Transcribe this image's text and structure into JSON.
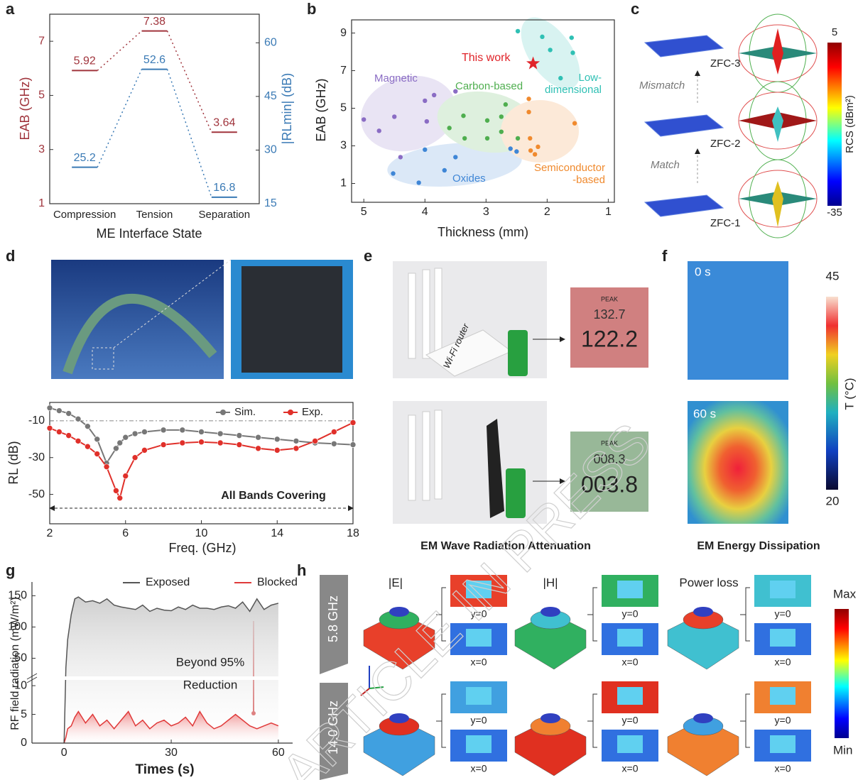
{
  "chart_data": [
    {
      "type": "line",
      "categories": [
        "Compression",
        "Tension",
        "Separation"
      ],
      "series": [
        {
          "color": "#a0343c",
          "values": [
            5.92,
            7.38,
            3.64
          ]
        },
        {
          "color": "#3a7ab5",
          "values": [
            25.2,
            52.6,
            16.8
          ],
          "axis": "y2"
        }
      ],
      "xlabel": "ME Interface State",
      "ylabel": "EAB (GHz)",
      "y2label": "|RLmin| (dB)",
      "ylim": [
        1,
        8
      ],
      "yticks": [
        1,
        3,
        5,
        7
      ],
      "y2lim": [
        15,
        68
      ],
      "y2ticks": [
        15,
        30,
        45,
        60
      ]
    },
    {
      "type": "scatter",
      "xlabel": "Thickness (mm)",
      "ylabel": "EAB (GHz)",
      "xlim": [
        5.2,
        0.9
      ],
      "xticks": [
        5,
        4,
        3,
        2,
        1
      ],
      "ylim": [
        0,
        9.7
      ],
      "yticks": [
        1,
        3,
        5,
        7,
        9
      ],
      "series": [
        {
          "name": "Magnetic",
          "color": "#8a6cc4",
          "x": [
            5.0,
            4.75,
            4.5,
            4.4,
            4.0,
            3.85,
            3.97,
            3.5
          ],
          "values": [
            4.4,
            3.8,
            4.55,
            2.4,
            5.4,
            5.7,
            4.3,
            5.9
          ]
        },
        {
          "name": "Carbon-based",
          "color": "#4fae4f",
          "x": [
            3.6,
            3.37,
            3.35,
            2.98,
            2.98,
            2.75,
            2.68,
            2.75,
            2.48
          ],
          "values": [
            3.95,
            4.6,
            3.4,
            4.35,
            3.4,
            3.75,
            5.2,
            4.55,
            3.4
          ]
        },
        {
          "name": "Oxides",
          "color": "#3f86d6",
          "x": [
            4.52,
            4.1,
            4.0,
            3.68,
            3.5,
            2.6,
            2.5
          ],
          "values": [
            1.53,
            1.04,
            2.8,
            1.7,
            2.4,
            2.85,
            2.7
          ]
        },
        {
          "name": "Semiconductor\n-based",
          "color": "#f08a2e",
          "x": [
            2.3,
            2.3,
            2.28,
            2.27,
            2.2,
            2.15,
            1.55
          ],
          "values": [
            5.5,
            4.8,
            3.4,
            2.75,
            2.55,
            2.95,
            4.2
          ]
        },
        {
          "name": "Low-\ndimensional",
          "color": "#2fc0b4",
          "x": [
            2.48,
            2.08,
            1.95,
            1.6,
            1.58,
            1.78
          ],
          "values": [
            9.1,
            8.8,
            8.1,
            8.75,
            7.95,
            6.6
          ]
        },
        {
          "name": "This work",
          "color": "#e0242a",
          "marker": "star",
          "x": [
            2.23
          ],
          "values": [
            7.38
          ]
        }
      ]
    },
    {
      "type": "line",
      "xlabel": "Freq. (GHz)",
      "ylabel": "RL (dB)",
      "xlim": [
        2,
        18
      ],
      "xticks": [
        2,
        6,
        10,
        14,
        18
      ],
      "ylim": [
        -66,
        0
      ],
      "yticks": [
        -10,
        -30,
        -50
      ],
      "reference_line": -10,
      "annotation": "All Bands Covering",
      "x": [
        2,
        2.5,
        3,
        3.5,
        4,
        4.5,
        5,
        5.5,
        5.7,
        6,
        6.5,
        7,
        8,
        9,
        10,
        11,
        12,
        13,
        14,
        15,
        16,
        17,
        18
      ],
      "series": [
        {
          "name": "Sim.",
          "color": "#777777",
          "values": [
            -3,
            -4.5,
            -6,
            -9,
            -13,
            -20,
            -33,
            -25,
            -22,
            -19,
            -17,
            -16,
            -15,
            -15,
            -16,
            -17,
            -18,
            -19,
            -20,
            -21,
            -22,
            -22.5,
            -23
          ]
        },
        {
          "name": "Exp.",
          "color": "#e0302a",
          "values": [
            -14,
            -16,
            -18,
            -21,
            -24,
            -28,
            -35,
            -48,
            -52,
            -40,
            -30,
            -26,
            -23,
            -22,
            -21.5,
            -22,
            -23,
            -25,
            -26,
            -25,
            -21,
            -16,
            -11
          ]
        }
      ]
    },
    {
      "type": "area",
      "xlabel": "Times (s)",
      "ylabel": "RF field radiation (mW/m²)",
      "xlim": [
        -9,
        64
      ],
      "xticks": [
        0,
        30,
        60
      ],
      "ylim": [
        0,
        172
      ],
      "yticks": [
        0,
        5,
        10,
        50,
        100,
        150
      ],
      "axis_break": [
        11,
        21
      ],
      "annotations": [
        "Beyond 95%",
        "Reduction"
      ],
      "x": [
        0,
        0.5,
        1,
        2,
        3,
        4,
        6,
        8,
        10,
        12,
        14,
        16,
        18,
        20,
        22,
        24,
        26,
        28,
        30,
        32,
        34,
        36,
        38,
        40,
        42,
        44,
        46,
        48,
        50,
        52,
        54,
        56,
        58,
        60
      ],
      "series": [
        {
          "name": "Exposed",
          "color": "#555555",
          "values": [
            0,
            35,
            80,
            120,
            145,
            148,
            140,
            142,
            138,
            145,
            135,
            132,
            130,
            128,
            135,
            125,
            130,
            127,
            126,
            132,
            128,
            135,
            130,
            130,
            128,
            132,
            134,
            130,
            140,
            125,
            145,
            128,
            135,
            138
          ]
        },
        {
          "name": "Blocked",
          "color": "#e03a3a",
          "values": [
            0,
            1,
            2.5,
            3,
            4.5,
            5.5,
            3.5,
            5,
            3,
            4,
            2.5,
            4,
            5.5,
            3,
            4,
            2.5,
            3.5,
            4,
            3,
            3.5,
            4.5,
            3,
            5.5,
            3.5,
            2.5,
            3,
            4,
            5,
            4,
            3,
            2.5,
            3,
            3.5,
            3
          ]
        }
      ]
    }
  ],
  "figure": {
    "panel_letters": [
      "a",
      "b",
      "c",
      "d",
      "e",
      "f",
      "g",
      "h"
    ],
    "panel_c": {
      "labels": [
        "ZFC-3",
        "ZFC-2",
        "ZFC-1"
      ],
      "arrows": [
        "Mismatch",
        "Match"
      ],
      "colorbar": {
        "max": "5",
        "min": "-35",
        "label": "RCS (dBm²)"
      }
    },
    "panel_e": {
      "router_label": "Wi-Fi router",
      "meter_top": [
        "PEAK",
        "132.7",
        "122.2"
      ],
      "meter_bottom": [
        "PEAK",
        "008.3",
        "003.8"
      ],
      "caption": "EM Wave Radiation Attenuation"
    },
    "panel_f": {
      "times": [
        "0 s",
        "60 s"
      ],
      "colorbar": {
        "max": "45",
        "min": "20",
        "label": "T (°C)"
      },
      "caption": "EM Energy Dissipation"
    },
    "panel_h": {
      "frequencies": [
        "5.8 GHz",
        "14.0 GHz"
      ],
      "fields": [
        "|E|",
        "|H|",
        "Power loss"
      ],
      "planes": [
        "y=0",
        "x=0"
      ],
      "colorbar": {
        "max": "Max",
        "min": "Min"
      }
    },
    "watermark": "ARTICLE IN PRESS"
  }
}
